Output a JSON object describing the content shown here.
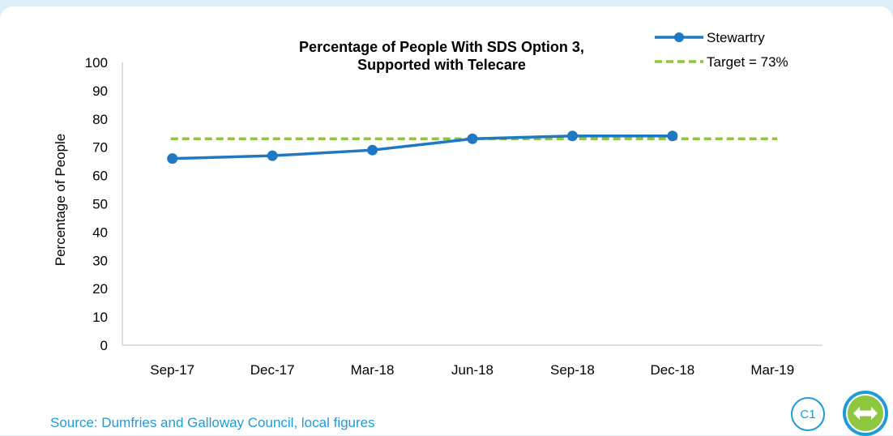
{
  "chart_data": {
    "type": "line",
    "title": [
      "Percentage of People With SDS Option 3,",
      "Supported with Telecare"
    ],
    "xlabel": "",
    "ylabel": "Percentage of People",
    "categories": [
      "Sep-17",
      "Dec-17",
      "Mar-18",
      "Jun-18",
      "Sep-18",
      "Dec-18",
      "Mar-19"
    ],
    "ylim": [
      0,
      100
    ],
    "yticks": [
      0,
      10,
      20,
      30,
      40,
      50,
      60,
      70,
      80,
      90,
      100
    ],
    "series": [
      {
        "name": "Stewartry",
        "values": [
          66,
          67,
          69,
          73,
          74,
          74,
          null
        ],
        "color": "#1f78c1",
        "style": "solid-markers"
      }
    ],
    "target": {
      "name": "Target = 73%",
      "value": 73,
      "color": "#8dc63f",
      "style": "dashed"
    },
    "legend_position": "top-right",
    "grid": false
  },
  "footer": {
    "source": "Source: Dumfries and Galloway Council, local figures",
    "badge": "C1"
  },
  "colors": {
    "accent": "#1f9bd7",
    "nav_button": "#8dc63f",
    "background": "#dbeef9"
  },
  "icons": {
    "nav": "left-right-arrow-icon"
  }
}
